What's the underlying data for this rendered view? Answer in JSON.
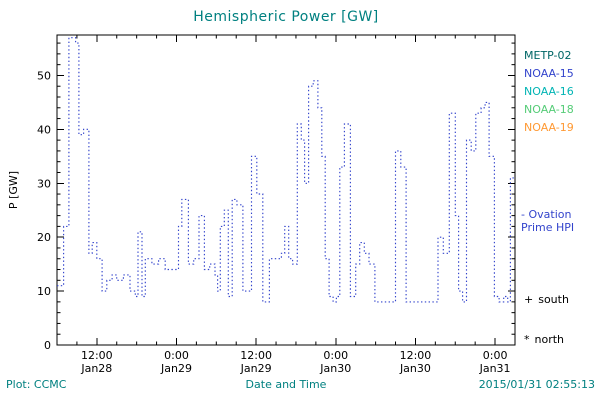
{
  "colors": {
    "title": "#008080",
    "footer": "#008080",
    "axis": "#000000",
    "tick_label": "#000000"
  },
  "legend": {
    "satellites": [
      {
        "label": "METP-02",
        "color": "#006666"
      },
      {
        "label": "NOAA-15",
        "color": "#3344cc"
      },
      {
        "label": "NOAA-16",
        "color": "#00b4b4"
      },
      {
        "label": "NOAA-18",
        "color": "#55cc77"
      },
      {
        "label": "NOAA-19",
        "color": "#ff9933"
      }
    ],
    "model": {
      "lines": [
        "- Ovation",
        "Prime HPI"
      ],
      "color": "#3344cc"
    },
    "markers": [
      {
        "symbol": "+",
        "label": "south"
      },
      {
        "symbol": "*",
        "label": "north"
      }
    ]
  },
  "footer": {
    "credit": "Plot: CCMC",
    "timestamp": "2015/01/31 02:55:13"
  },
  "chart_data": {
    "type": "line",
    "title": "Hemispheric Power [GW]",
    "xlabel": "Date and Time",
    "ylabel": "P [GW]",
    "x_unit": "hours since 2015-01-28 00:00",
    "xlim": [
      6,
      75
    ],
    "ylim": [
      0,
      57.5
    ],
    "yticks": [
      0,
      10,
      20,
      30,
      40,
      50
    ],
    "xticks": [
      {
        "t": 12,
        "time": "12:00",
        "date": "Jan28"
      },
      {
        "t": 24,
        "time": "0:00",
        "date": "Jan29"
      },
      {
        "t": 36,
        "time": "12:00",
        "date": "Jan29"
      },
      {
        "t": 48,
        "time": "0:00",
        "date": "Jan30"
      },
      {
        "t": 60,
        "time": "12:00",
        "date": "Jan30"
      },
      {
        "t": 72,
        "time": "0:00",
        "date": "Jan31"
      }
    ],
    "grid": false,
    "legend_position": "right",
    "series": [
      {
        "name": "Ovation Prime HPI",
        "color": "#3344cc",
        "style": "dotted-step",
        "points": [
          [
            6,
            11
          ],
          [
            7,
            22
          ],
          [
            7.8,
            57
          ],
          [
            8.8,
            56
          ],
          [
            9.3,
            39
          ],
          [
            10,
            40
          ],
          [
            10.8,
            17
          ],
          [
            11.3,
            19
          ],
          [
            12,
            16
          ],
          [
            12.8,
            10
          ],
          [
            13.5,
            12
          ],
          [
            14.3,
            13
          ],
          [
            15,
            12
          ],
          [
            16,
            13
          ],
          [
            17,
            10
          ],
          [
            17.8,
            9
          ],
          [
            18.2,
            21
          ],
          [
            18.8,
            9
          ],
          [
            19.3,
            16
          ],
          [
            20.3,
            15
          ],
          [
            21.3,
            16
          ],
          [
            22.3,
            14
          ],
          [
            24.3,
            22
          ],
          [
            24.8,
            27
          ],
          [
            25.8,
            15
          ],
          [
            26.6,
            16
          ],
          [
            27.4,
            24
          ],
          [
            28.2,
            14
          ],
          [
            29,
            15
          ],
          [
            29.8,
            13
          ],
          [
            30.2,
            10
          ],
          [
            30.6,
            22
          ],
          [
            31.2,
            25
          ],
          [
            31.8,
            9
          ],
          [
            32.4,
            27
          ],
          [
            33.1,
            26
          ],
          [
            34,
            10
          ],
          [
            35.3,
            35
          ],
          [
            36.1,
            28
          ],
          [
            37,
            8
          ],
          [
            38,
            16
          ],
          [
            39,
            16
          ],
          [
            39.8,
            17
          ],
          [
            40.3,
            22
          ],
          [
            40.9,
            16
          ],
          [
            41.5,
            15
          ],
          [
            42.2,
            41
          ],
          [
            42.8,
            38
          ],
          [
            43.3,
            30
          ],
          [
            43.9,
            48
          ],
          [
            44.6,
            49
          ],
          [
            45.3,
            44
          ],
          [
            45.9,
            35
          ],
          [
            46.4,
            16
          ],
          [
            47,
            9
          ],
          [
            47.6,
            8
          ],
          [
            48.1,
            9
          ],
          [
            48.6,
            33
          ],
          [
            49.3,
            41
          ],
          [
            50.2,
            9
          ],
          [
            51,
            15
          ],
          [
            51.6,
            19
          ],
          [
            52.3,
            17
          ],
          [
            53,
            15
          ],
          [
            53.9,
            8
          ],
          [
            57,
            36
          ],
          [
            57.8,
            33
          ],
          [
            58.6,
            8
          ],
          [
            63.4,
            20
          ],
          [
            64.2,
            17
          ],
          [
            65.1,
            43
          ],
          [
            66,
            24
          ],
          [
            66.5,
            10
          ],
          [
            67.1,
            8
          ],
          [
            67.7,
            38
          ],
          [
            68.4,
            36
          ],
          [
            69.1,
            43
          ],
          [
            69.9,
            44
          ],
          [
            70.5,
            45
          ],
          [
            71.1,
            35
          ],
          [
            71.9,
            9
          ],
          [
            72.6,
            8
          ],
          [
            73.3,
            9
          ],
          [
            73.9,
            8
          ],
          [
            74.3,
            31
          ]
        ]
      }
    ]
  }
}
